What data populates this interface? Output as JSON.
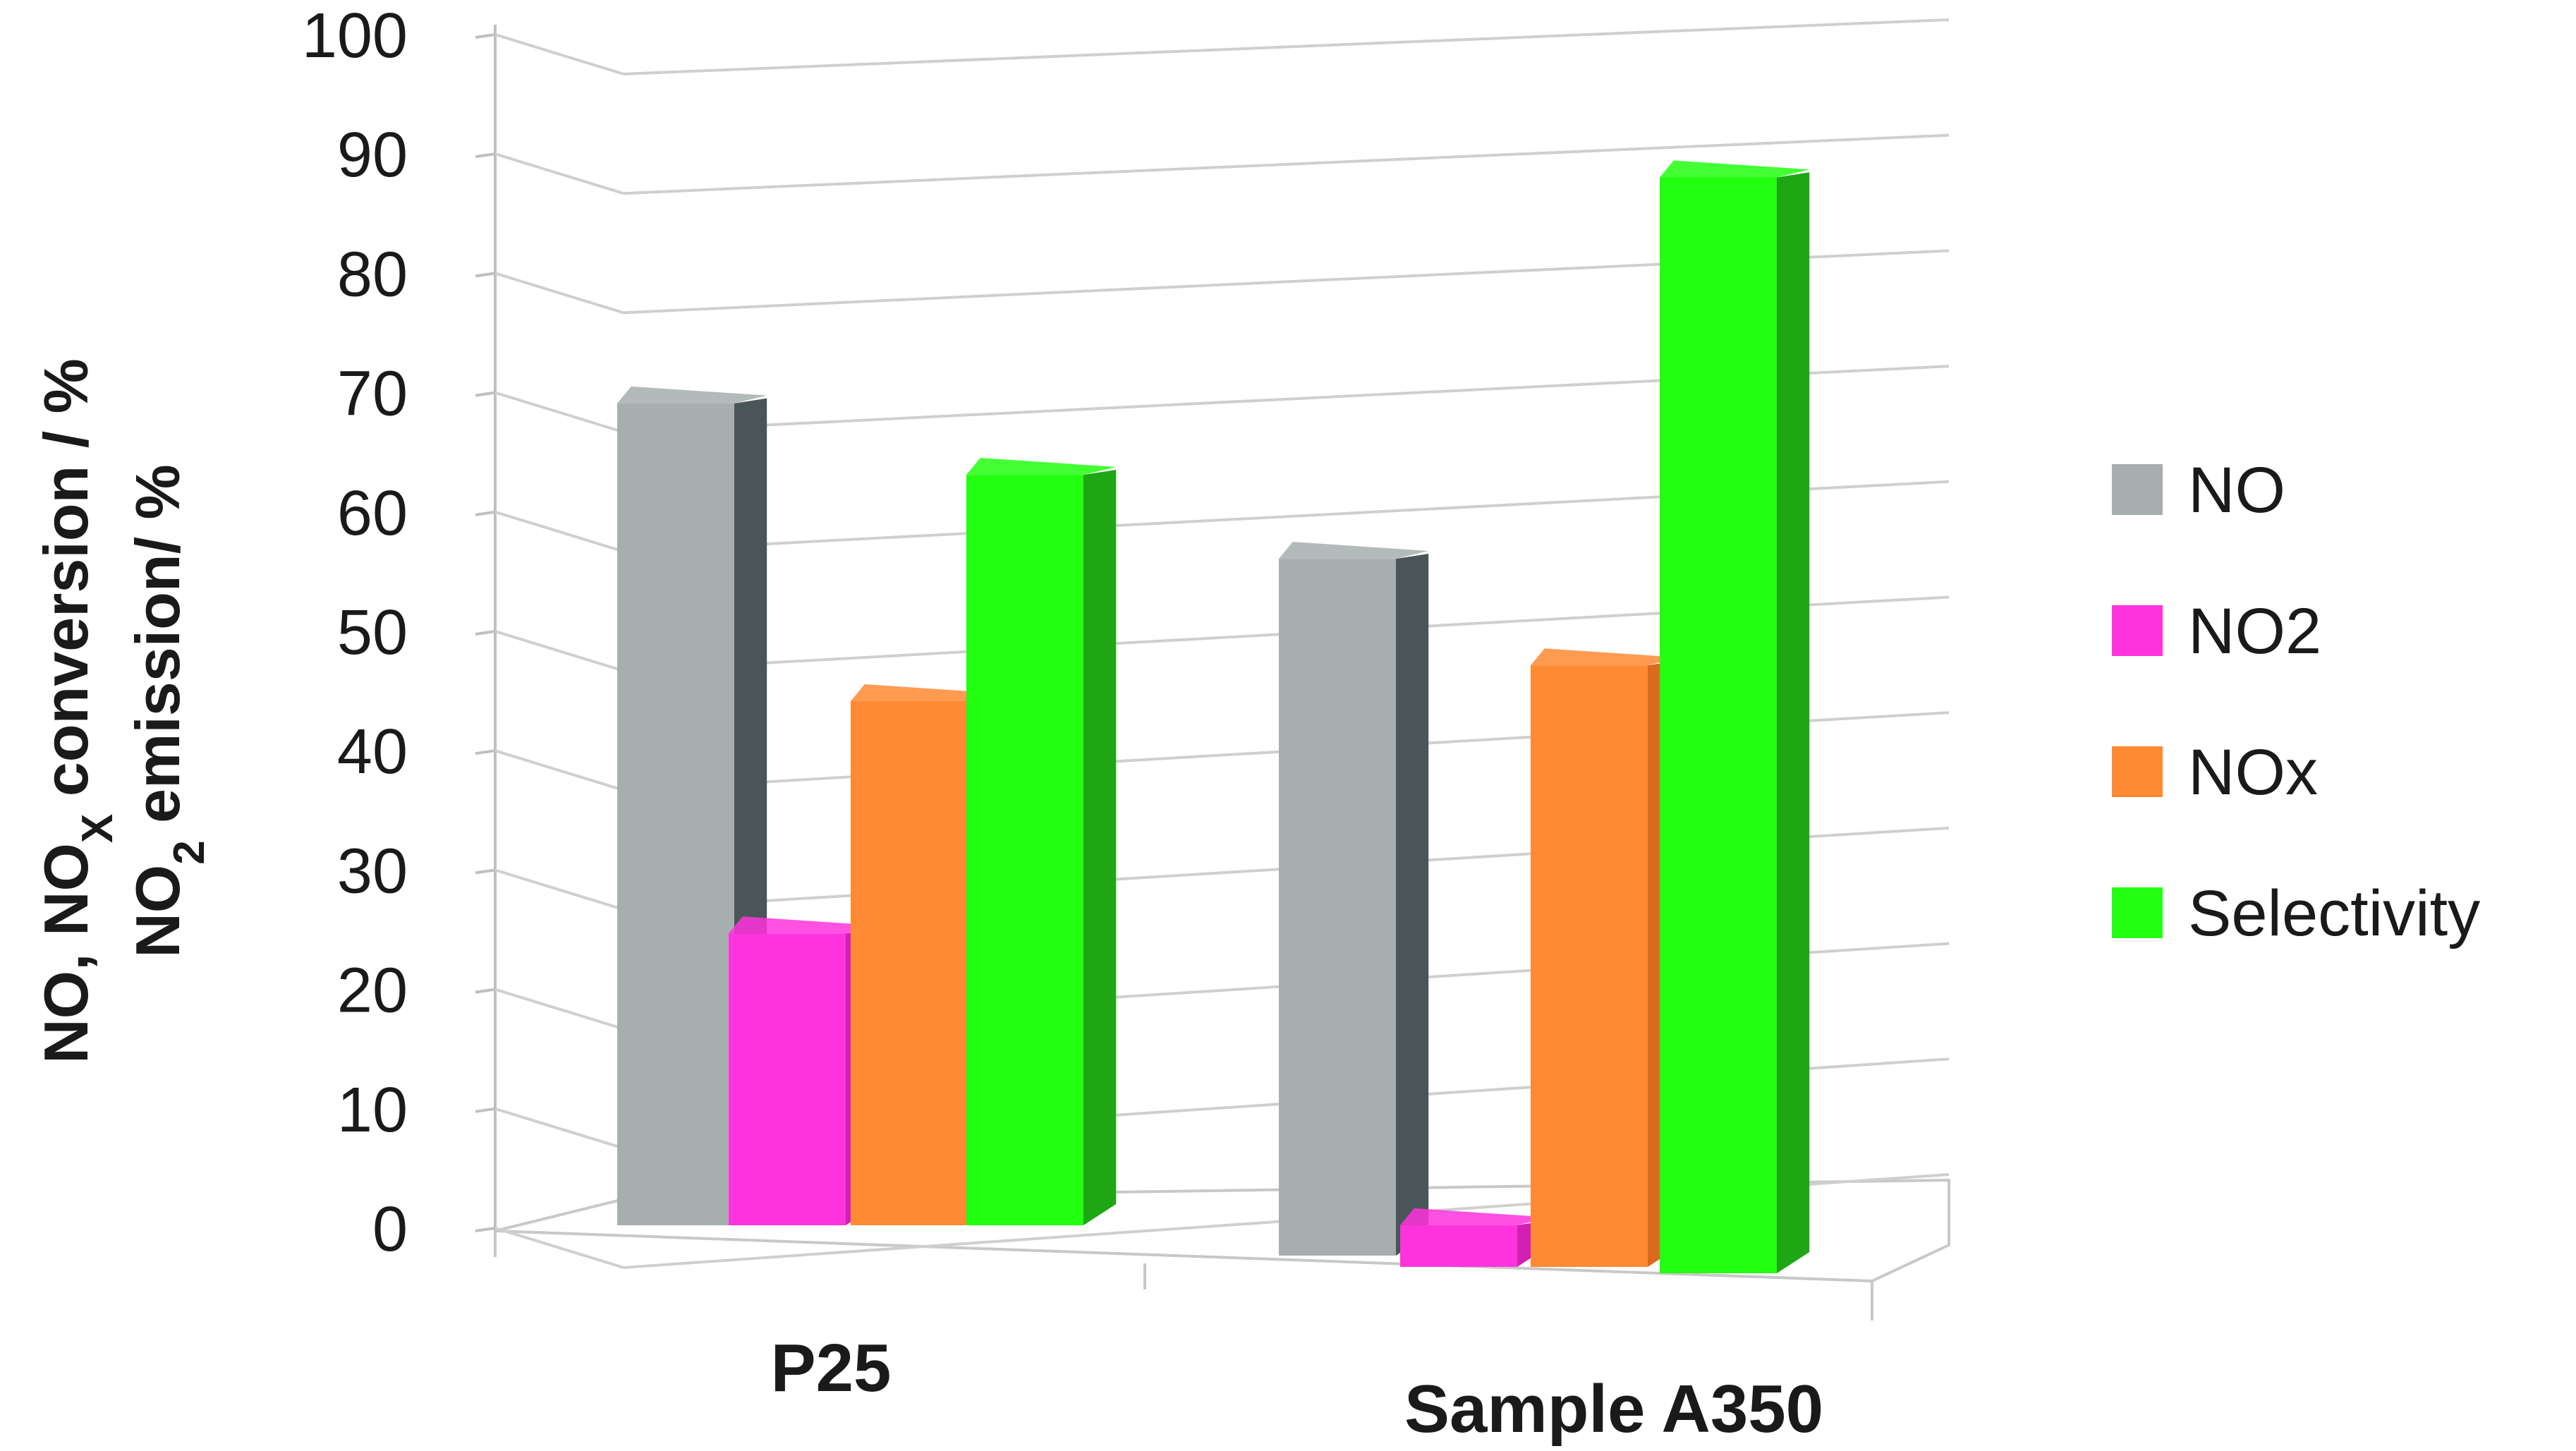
{
  "chart_data": {
    "type": "bar",
    "style": "3d-clustered-column",
    "categories": [
      "P25",
      "Sample A350"
    ],
    "series": [
      {
        "name": "NO",
        "values": [
          69,
          58.5
        ],
        "color": "#a6aeae",
        "side_color": "#4a5558"
      },
      {
        "name": "NO2",
        "values": [
          24.5,
          3.5
        ],
        "color": "#ff33dd",
        "side_color": "#d21fb4"
      },
      {
        "name": "NOx",
        "values": [
          44,
          50.5
        ],
        "color": "#ff8a33",
        "side_color": "#d96a1e"
      },
      {
        "name": "Selectivity",
        "values": [
          63,
          92
        ],
        "color": "#22ff11",
        "side_color": "#1ea614"
      }
    ],
    "ylabel_lines": [
      {
        "parts": [
          "NO, NO",
          "X",
          " conversion / %"
        ]
      },
      {
        "parts": [
          "NO",
          "2",
          " emission/ %"
        ]
      }
    ],
    "ylim": [
      0,
      100
    ],
    "yticks": [
      "0",
      "10",
      "20",
      "30",
      "40",
      "50",
      "60",
      "70",
      "80",
      "90",
      "100"
    ],
    "grid": true,
    "legend_position": "right"
  }
}
